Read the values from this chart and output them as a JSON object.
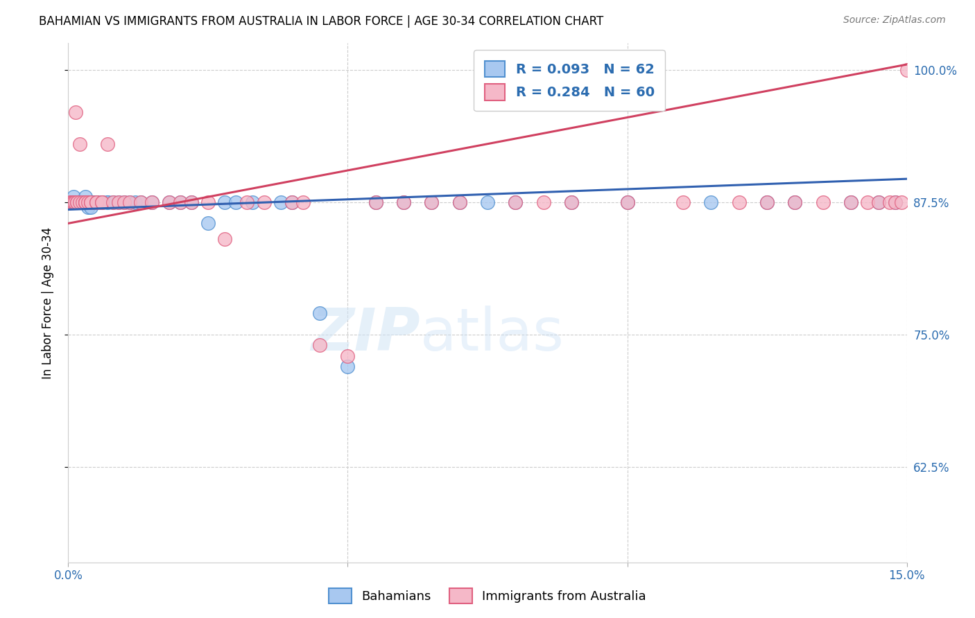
{
  "title": "BAHAMIAN VS IMMIGRANTS FROM AUSTRALIA IN LABOR FORCE | AGE 30-34 CORRELATION CHART",
  "source": "Source: ZipAtlas.com",
  "ylabel": "In Labor Force | Age 30-34",
  "x_min": 0.0,
  "x_max": 0.15,
  "y_min": 0.535,
  "y_max": 1.025,
  "y_ticks": [
    0.625,
    0.75,
    0.875,
    1.0
  ],
  "y_tick_labels": [
    "62.5%",
    "75.0%",
    "87.5%",
    "100.0%"
  ],
  "blue_color": "#A8C8F0",
  "pink_color": "#F5B8C8",
  "blue_edge_color": "#5090D0",
  "pink_edge_color": "#E06080",
  "blue_line_color": "#3060B0",
  "pink_line_color": "#D04060",
  "legend_blue_r": 0.093,
  "legend_blue_n": 62,
  "legend_pink_r": 0.284,
  "legend_pink_n": 60,
  "bottom_legend_blue": "Bahamians",
  "bottom_legend_pink": "Immigrants from Australia",
  "blue_trend_x0": 0.0,
  "blue_trend_x1": 0.15,
  "blue_trend_y0": 0.868,
  "blue_trend_y1": 0.897,
  "pink_trend_x0": 0.0,
  "pink_trend_x1": 0.15,
  "pink_trend_y0": 0.855,
  "pink_trend_y1": 1.005,
  "blue_x": [
    0.0003,
    0.0005,
    0.0007,
    0.001,
    0.001,
    0.0012,
    0.0012,
    0.0015,
    0.0015,
    0.002,
    0.002,
    0.002,
    0.0025,
    0.0025,
    0.003,
    0.003,
    0.003,
    0.003,
    0.0035,
    0.0035,
    0.004,
    0.004,
    0.0045,
    0.005,
    0.005,
    0.005,
    0.006,
    0.006,
    0.007,
    0.007,
    0.008,
    0.009,
    0.01,
    0.011,
    0.012,
    0.013,
    0.015,
    0.018,
    0.02,
    0.022,
    0.025,
    0.028,
    0.03,
    0.033,
    0.038,
    0.04,
    0.045,
    0.05,
    0.055,
    0.06,
    0.065,
    0.07,
    0.075,
    0.08,
    0.09,
    0.1,
    0.115,
    0.125,
    0.13,
    0.14,
    0.145,
    0.148
  ],
  "blue_y": [
    0.875,
    0.875,
    0.875,
    0.875,
    0.88,
    0.875,
    0.875,
    0.875,
    0.875,
    0.875,
    0.875,
    0.875,
    0.875,
    0.875,
    0.875,
    0.88,
    0.875,
    0.875,
    0.875,
    0.87,
    0.87,
    0.875,
    0.875,
    0.875,
    0.875,
    0.875,
    0.875,
    0.875,
    0.875,
    0.875,
    0.875,
    0.875,
    0.875,
    0.875,
    0.875,
    0.875,
    0.875,
    0.875,
    0.875,
    0.875,
    0.855,
    0.875,
    0.875,
    0.875,
    0.875,
    0.875,
    0.77,
    0.72,
    0.875,
    0.875,
    0.875,
    0.875,
    0.875,
    0.875,
    0.875,
    0.875,
    0.875,
    0.875,
    0.875,
    0.875,
    0.875,
    0.875
  ],
  "pink_x": [
    0.0003,
    0.0005,
    0.0007,
    0.001,
    0.001,
    0.0012,
    0.0013,
    0.0015,
    0.0015,
    0.002,
    0.002,
    0.0025,
    0.003,
    0.003,
    0.003,
    0.0035,
    0.004,
    0.004,
    0.005,
    0.005,
    0.006,
    0.006,
    0.007,
    0.008,
    0.009,
    0.01,
    0.011,
    0.013,
    0.015,
    0.018,
    0.02,
    0.022,
    0.025,
    0.028,
    0.032,
    0.035,
    0.04,
    0.042,
    0.045,
    0.05,
    0.055,
    0.06,
    0.065,
    0.07,
    0.08,
    0.085,
    0.09,
    0.1,
    0.11,
    0.12,
    0.125,
    0.13,
    0.135,
    0.14,
    0.143,
    0.145,
    0.147,
    0.148,
    0.149,
    0.15
  ],
  "pink_y": [
    0.875,
    0.875,
    0.875,
    0.875,
    0.875,
    0.875,
    0.96,
    0.875,
    0.875,
    0.93,
    0.875,
    0.875,
    0.875,
    0.875,
    0.875,
    0.875,
    0.875,
    0.875,
    0.875,
    0.875,
    0.875,
    0.875,
    0.93,
    0.875,
    0.875,
    0.875,
    0.875,
    0.875,
    0.875,
    0.875,
    0.875,
    0.875,
    0.875,
    0.84,
    0.875,
    0.875,
    0.875,
    0.875,
    0.74,
    0.73,
    0.875,
    0.875,
    0.875,
    0.875,
    0.875,
    0.875,
    0.875,
    0.875,
    0.875,
    0.875,
    0.875,
    0.875,
    0.875,
    0.875,
    0.875,
    0.875,
    0.875,
    0.875,
    0.875,
    1.0
  ]
}
